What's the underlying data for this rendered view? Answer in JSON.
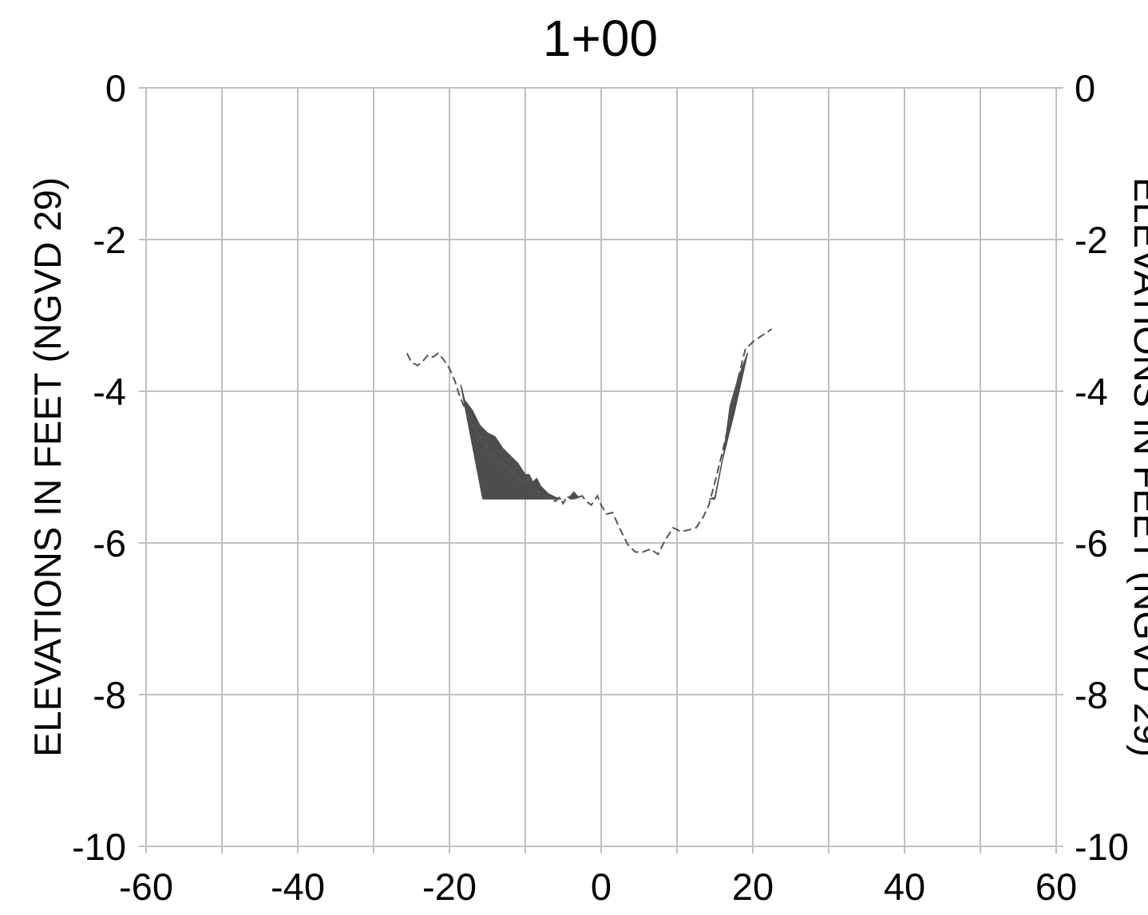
{
  "chart_data": {
    "type": "area",
    "title": "1+00",
    "ylabel_left": "ELEVATIONS IN FEET (NGVD 29)",
    "ylabel_right": "ELEVATIONS IN FEET (NGVD 29)",
    "xlim": [
      -60,
      60
    ],
    "ylim": [
      -10,
      0
    ],
    "x_ticks": [
      -60,
      -40,
      -20,
      0,
      20,
      40,
      60
    ],
    "x_tick_labels": [
      "-60",
      "-40",
      "-20",
      "0",
      "20",
      "40",
      "60"
    ],
    "x_grid": [
      -60,
      -50,
      -40,
      -30,
      -20,
      -10,
      0,
      10,
      20,
      30,
      40,
      50,
      60
    ],
    "y_ticks": [
      0,
      -2,
      -4,
      -6,
      -8,
      -10
    ],
    "y_tick_labels": [
      "0",
      "-2",
      "-4",
      "-6",
      "-8",
      "-10"
    ],
    "grid": true,
    "colors": {
      "grid": "#c0c0c0",
      "profile": "#555555",
      "fill": "#4d4d4d"
    },
    "series": [
      {
        "style": "dashed",
        "x": [
          -25.6,
          -25.0,
          -24.2,
          -23.5,
          -22.8,
          -22.2,
          -21.5,
          -20.8,
          -20.0,
          -19.3,
          -18.7,
          -18.0,
          -17.2,
          -16.0,
          -15.0,
          -14.0,
          -13.0,
          -12.0,
          -11.0,
          -10.0,
          -9.5,
          -9.0,
          -8.5,
          -8.0,
          -7.0,
          -6.0,
          -5.5,
          -5.0,
          -4.5,
          -4.0,
          -3.2,
          -2.5,
          -2.0,
          -1.3,
          -0.5,
          0.0,
          0.7,
          1.5,
          2.5,
          3.5,
          4.5,
          5.5,
          6.5,
          7.5,
          8.5,
          9.5,
          10.5,
          11.5,
          12.5,
          13.5,
          14.2,
          15.0,
          16.0,
          17.0,
          18.0,
          19.0,
          20.0,
          21.0,
          22.5
        ],
        "y": [
          -3.5,
          -3.62,
          -3.66,
          -3.6,
          -3.52,
          -3.55,
          -3.5,
          -3.58,
          -3.7,
          -3.86,
          -4.05,
          -4.22,
          -4.4,
          -4.6,
          -4.75,
          -4.85,
          -4.95,
          -5.05,
          -5.15,
          -5.22,
          -5.1,
          -5.28,
          -5.32,
          -5.35,
          -5.4,
          -5.45,
          -5.4,
          -5.48,
          -5.38,
          -5.42,
          -5.4,
          -5.38,
          -5.45,
          -5.5,
          -5.38,
          -5.5,
          -5.62,
          -5.6,
          -5.82,
          -6.02,
          -6.12,
          -6.12,
          -6.08,
          -6.15,
          -5.95,
          -5.8,
          -5.85,
          -5.83,
          -5.8,
          -5.65,
          -5.5,
          -5.2,
          -4.8,
          -4.35,
          -3.85,
          -3.45,
          -3.35,
          -3.28,
          -3.18
        ]
      }
    ],
    "filled_areas": [
      {
        "x": [
          -18.5,
          -18.0,
          -17.0,
          -16.0,
          -15.0,
          -14.0,
          -13.0,
          -12.0,
          -11.0,
          -10.0,
          -9.5,
          -9.0,
          -8.5,
          -8.0,
          -7.0,
          -6.0,
          -5.3,
          -15.6
        ],
        "y": [
          -3.92,
          -4.12,
          -4.25,
          -4.45,
          -4.55,
          -4.6,
          -4.75,
          -4.85,
          -4.95,
          -5.1,
          -5.1,
          -5.2,
          -5.15,
          -5.25,
          -5.35,
          -5.4,
          -5.42,
          -5.42
        ]
      },
      {
        "x": [
          -4.2,
          -3.6,
          -3.0,
          -3.6
        ],
        "y": [
          -5.4,
          -5.33,
          -5.4,
          -5.42
        ]
      },
      {
        "x": [
          14.3,
          15.0,
          16.2,
          17.0,
          18.0,
          19.3,
          17.5,
          16.0,
          15.0
        ],
        "y": [
          -5.42,
          -5.4,
          -4.8,
          -4.2,
          -3.85,
          -3.5,
          -4.3,
          -4.9,
          -5.42
        ]
      }
    ]
  }
}
